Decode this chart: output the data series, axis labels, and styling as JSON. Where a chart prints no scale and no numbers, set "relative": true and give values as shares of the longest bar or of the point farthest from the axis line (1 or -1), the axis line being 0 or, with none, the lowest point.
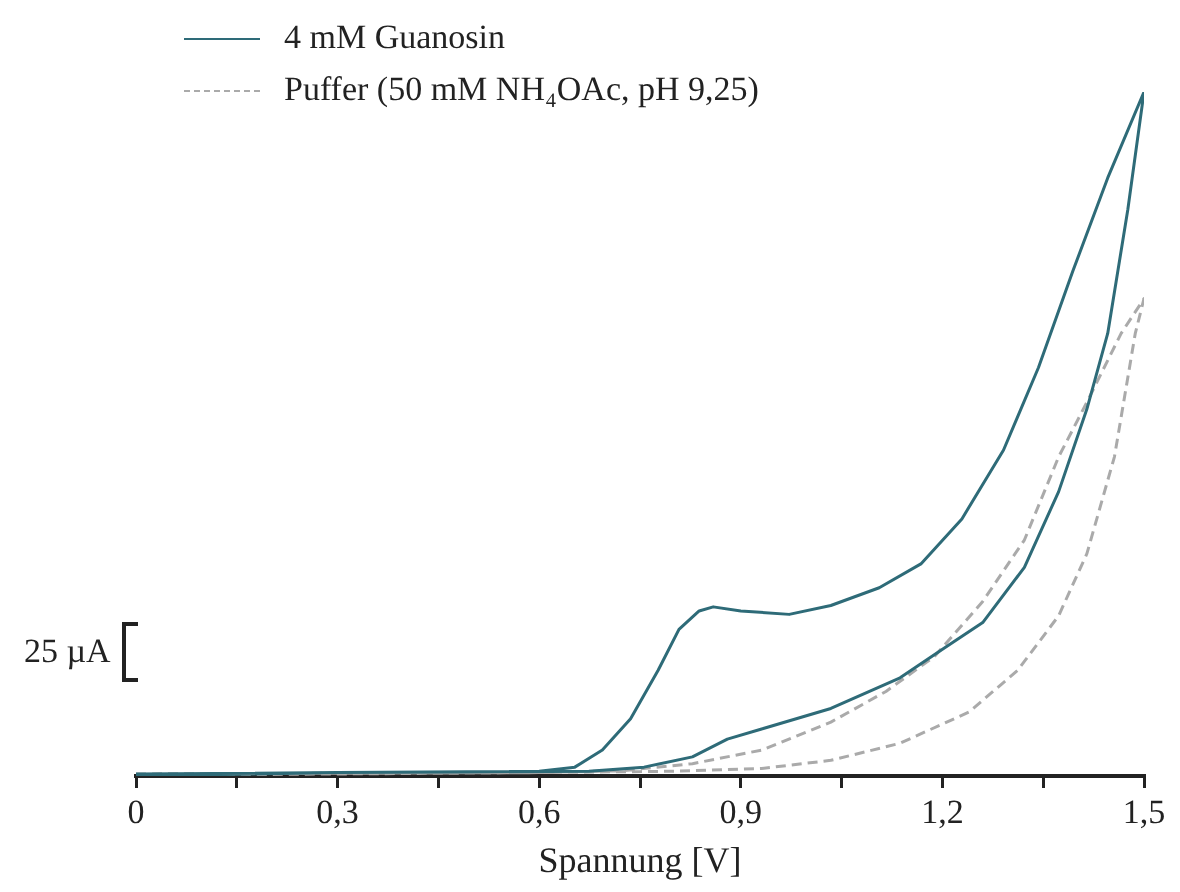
{
  "chart_data": {
    "type": "line",
    "xlabel": "Spannung [V]",
    "relative": true,
    "legend": "top left",
    "grid": false,
    "marker": "none",
    "xlim": [
      0,
      1.5
    ],
    "xticks": [
      {
        "value": 0,
        "label": "0"
      },
      {
        "value": 0.15,
        "label": null
      },
      {
        "value": 0.3,
        "label": "0,3"
      },
      {
        "value": 0.45,
        "label": null
      },
      {
        "value": 0.6,
        "label": "0,6"
      },
      {
        "value": 0.75,
        "label": null
      },
      {
        "value": 0.9,
        "label": "0,9"
      },
      {
        "value": 1.05,
        "label": null
      },
      {
        "value": 1.2,
        "label": "1,2"
      },
      {
        "value": 1.35,
        "label": null
      },
      {
        "value": 1.5,
        "label": "1,5"
      }
    ],
    "annotations": [
      "25 µA"
    ],
    "series": [
      {
        "name": "4 mM Guanosin",
        "color": "#2e6b78",
        "line_style": "solid",
        "x": [
          0,
          0.3,
          0.6,
          0.653,
          0.694,
          0.736,
          0.777,
          0.808,
          0.838,
          0.859,
          0.9,
          0.972,
          1.034,
          1.106,
          1.168,
          1.229,
          1.291,
          1.343,
          1.394,
          1.446,
          1.5,
          1.476,
          1.446,
          1.415,
          1.373,
          1.322,
          1.26,
          1.199,
          1.137,
          1.034,
          0.931,
          0.88,
          0.828,
          0.756,
          0.674,
          0.3,
          0
        ],
        "values": [
          0,
          0.002,
          0.004,
          0.01,
          0.035,
          0.081,
          0.152,
          0.212,
          0.239,
          0.245,
          0.239,
          0.234,
          0.247,
          0.273,
          0.308,
          0.374,
          0.475,
          0.596,
          0.737,
          0.874,
          1,
          0.828,
          0.646,
          0.535,
          0.414,
          0.303,
          0.222,
          0.182,
          0.141,
          0.096,
          0.066,
          0.051,
          0.025,
          0.01,
          0.004,
          0.002,
          -0.003
        ]
      },
      {
        "name": "Puffer (50 mM NH₄OAc, pH 9,25)",
        "color": "#aaaaaa",
        "line_style": "dashed",
        "x": [
          0,
          0.6,
          0.8,
          0.931,
          1.034,
          1.137,
          1.24,
          1.312,
          1.373,
          1.415,
          1.456,
          1.487,
          1.5,
          1.466,
          1.415,
          1.373,
          1.322,
          1.26,
          1.188,
          1.116,
          1.034,
          0.931,
          0.828,
          0.725,
          0.6,
          0
        ],
        "values": [
          0,
          0.002,
          0.004,
          0.008,
          0.02,
          0.045,
          0.091,
          0.152,
          0.232,
          0.323,
          0.465,
          0.646,
          0.697,
          0.646,
          0.545,
          0.465,
          0.343,
          0.253,
          0.172,
          0.121,
          0.076,
          0.035,
          0.015,
          0.005,
          0.002,
          -0.002
        ]
      }
    ]
  }
}
